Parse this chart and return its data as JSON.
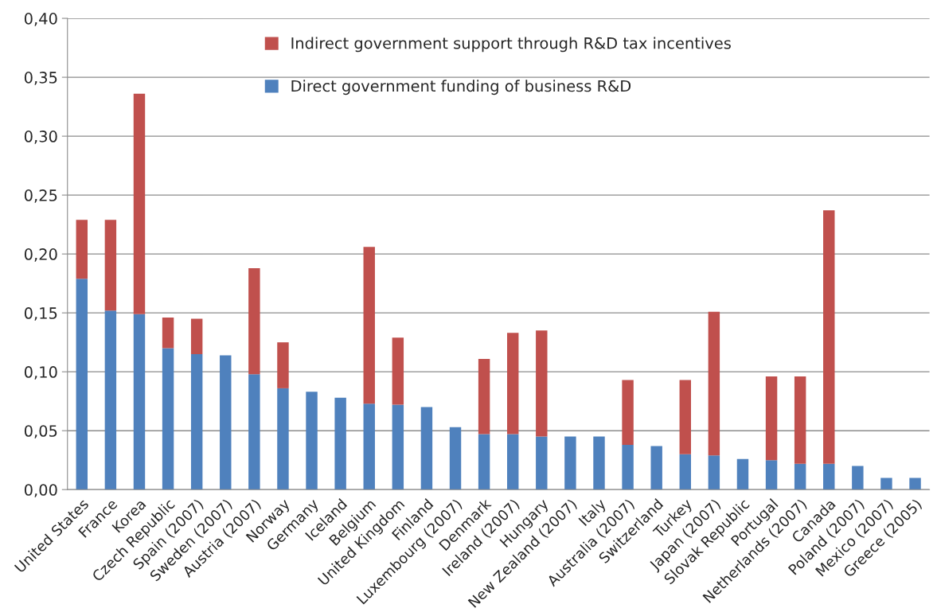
{
  "chart_data": {
    "type": "bar",
    "stacked": true,
    "grid": "y",
    "legend": "top",
    "categories": [
      "United States",
      "France",
      "Korea",
      "Czech Republic",
      "Spain (2007)",
      "Sweden (2007)",
      "Austria (2007)",
      "Norway",
      "Germany",
      "Iceland",
      "Belgium",
      "United Kingdom",
      "Finland",
      "Luxembourg (2007)",
      "Denmark",
      "Ireland (2007)",
      "Hungary",
      "New Zealand (2007)",
      "Italy",
      "Australia (2007)",
      "Switzerland",
      "Turkey",
      "Japan (2007)",
      "Slovak Republic",
      "Portugal",
      "Netherlands (2007)",
      "Canada",
      "Poland (2007)",
      "Mexico (2007)",
      "Greece (2005)"
    ],
    "series": [
      {
        "name": "Direct government funding of business R&D",
        "color": "#4f81bd",
        "values": [
          0.179,
          0.152,
          0.149,
          0.12,
          0.115,
          0.114,
          0.098,
          0.086,
          0.083,
          0.078,
          0.073,
          0.072,
          0.07,
          0.053,
          0.047,
          0.047,
          0.045,
          0.045,
          0.045,
          0.038,
          0.037,
          0.03,
          0.029,
          0.026,
          0.025,
          0.022,
          0.022,
          0.02,
          0.01,
          0.01
        ]
      },
      {
        "name": "Indirect government support through R&D tax incentives",
        "color": "#c0504d",
        "values": [
          0.05,
          0.077,
          0.187,
          0.026,
          0.03,
          0,
          0.09,
          0.039,
          0,
          0,
          0.133,
          0.057,
          0,
          0,
          0.064,
          0.086,
          0.09,
          0,
          0,
          0.055,
          0,
          0.063,
          0.122,
          0,
          0.071,
          0.074,
          0.215,
          0,
          0,
          0
        ]
      }
    ],
    "ylim": [
      0,
      0.4
    ],
    "yticks": [
      {
        "value": 0,
        "label": "0,00"
      },
      {
        "value": 0.05,
        "label": "0,05"
      },
      {
        "value": 0.1,
        "label": "0,10"
      },
      {
        "value": 0.15,
        "label": "0,15"
      },
      {
        "value": 0.2,
        "label": "0,20"
      },
      {
        "value": 0.25,
        "label": "0,25"
      },
      {
        "value": 0.3,
        "label": "0,30"
      },
      {
        "value": 0.35,
        "label": "0,35"
      },
      {
        "value": 0.4,
        "label": "0,40"
      }
    ]
  }
}
